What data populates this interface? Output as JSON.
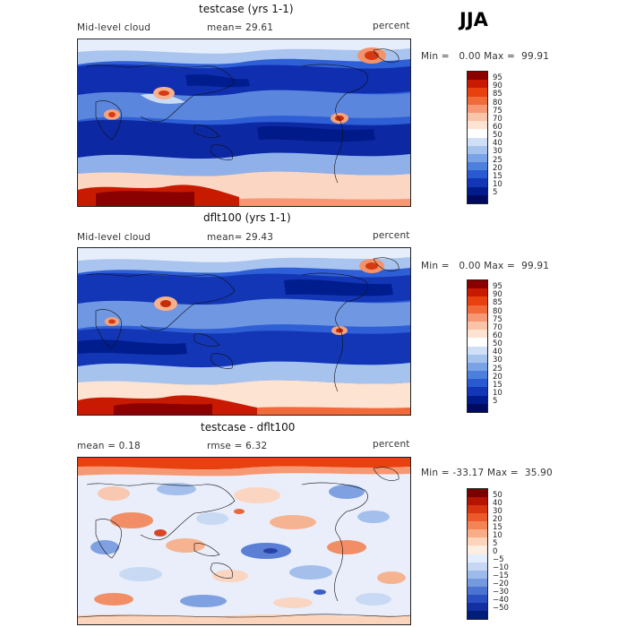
{
  "season": "JJA",
  "panels": [
    {
      "title": "testcase (yrs 1-1)",
      "left_label": "Mid-level cloud",
      "center_label": "mean=  29.61",
      "units": "percent",
      "min_label": "Min =",
      "min_value": "0.00",
      "max_label": "Max =",
      "max_value": "99.91",
      "colorbar_labels": [
        "95",
        "90",
        "85",
        "80",
        "75",
        "70",
        "60",
        "50",
        "40",
        "30",
        "25",
        "20",
        "15",
        "10",
        "5"
      ]
    },
    {
      "title": "dflt100 (yrs 1-1)",
      "left_label": "Mid-level cloud",
      "center_label": "mean=  29.43",
      "units": "percent",
      "min_label": "Min =",
      "min_value": "0.00",
      "max_label": "Max =",
      "max_value": "99.91",
      "colorbar_labels": [
        "95",
        "90",
        "85",
        "80",
        "75",
        "70",
        "60",
        "50",
        "40",
        "30",
        "25",
        "20",
        "15",
        "10",
        "5"
      ]
    },
    {
      "title": "testcase - dflt100",
      "left_label": "mean =    0.18",
      "center_label": "rmse =    6.32",
      "units": "percent",
      "min_label": "Min =",
      "min_value": "-33.17",
      "max_label": "Max =",
      "max_value": "35.90",
      "colorbar_labels": [
        "50",
        "40",
        "30",
        "20",
        "15",
        "10",
        "5",
        "0",
        "−5",
        "−10",
        "−15",
        "−20",
        "−30",
        "−40",
        "−50"
      ]
    }
  ],
  "colors": {
    "abs_scale": [
      "#8b0000",
      "#c81a00",
      "#e8400f",
      "#f06a3a",
      "#f59873",
      "#fac4a8",
      "#fde3d2",
      "#ffffff",
      "#cfe0f6",
      "#a6c3ee",
      "#7aa2e6",
      "#4d7fdc",
      "#2a5ad1",
      "#1236b6",
      "#001b8c",
      "#000a5e"
    ],
    "diff_scale": [
      "#7a0000",
      "#b51400",
      "#d83410",
      "#ec5a2b",
      "#f38456",
      "#f8ad86",
      "#fcd3bb",
      "#fdeee4",
      "#e4edfb",
      "#c5d7f3",
      "#9dbbea",
      "#7499df",
      "#4b73d2",
      "#2a4fc2",
      "#12309f",
      "#001d7a"
    ]
  }
}
